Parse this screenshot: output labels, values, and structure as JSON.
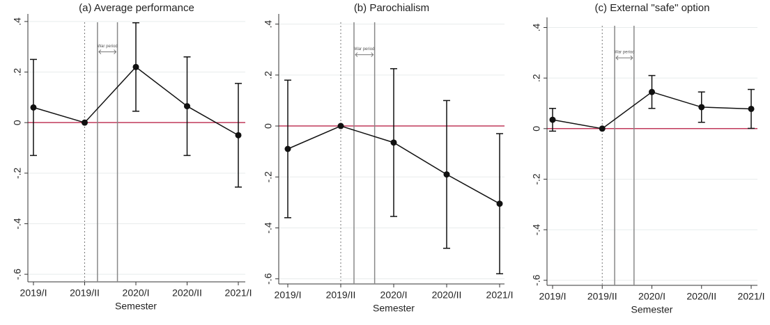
{
  "chart_data": [
    {
      "type": "line",
      "title": "(a) Average performance",
      "x_label": "Semester",
      "annotation": "War period",
      "categories": [
        "2019/I",
        "2019/II",
        "2020/I",
        "2020/II",
        "2021/I"
      ],
      "values": [
        0.06,
        0,
        0.22,
        0.065,
        -0.05
      ],
      "errors": [
        0.19,
        null,
        0.175,
        0.195,
        0.205
      ],
      "color": "#111111",
      "ref_color": "#c0395a",
      "ylim": [
        -0.63,
        0.43
      ],
      "yticks": [
        {
          "value": -0.6,
          "label": "-.6"
        },
        {
          "value": -0.4,
          "label": "-.4"
        },
        {
          "value": -0.2,
          "label": "-.2"
        },
        0,
        {
          "value": 0.2,
          "label": ".2"
        },
        {
          "value": 0.4,
          "label": ".4"
        }
      ],
      "grid": true
    },
    {
      "type": "line",
      "title": "(b) Parochialism",
      "x_label": "Semester",
      "annotation": "War period",
      "categories": [
        "2019/I",
        "2019/II",
        "2020/I",
        "2020/II",
        "2021/I"
      ],
      "values": [
        -0.09,
        0,
        -0.065,
        -0.19,
        -0.305
      ],
      "errors": [
        0.27,
        null,
        0.29,
        0.29,
        0.275
      ],
      "color": "#111111",
      "ref_color": "#c0395a",
      "ylim": [
        -0.62,
        0.44
      ],
      "yticks": [
        {
          "value": -0.6,
          "label": "-.6"
        },
        {
          "value": -0.4,
          "label": "-.4"
        },
        {
          "value": -0.2,
          "label": "-.2"
        },
        0,
        {
          "value": 0.2,
          "label": ".2"
        },
        {
          "value": 0.4,
          "label": ".4"
        }
      ],
      "grid": true
    },
    {
      "type": "line",
      "title": "(c) External \"safe\" option",
      "x_label": "Semester",
      "annotation": "War period",
      "categories": [
        "2019/I",
        "2019/II",
        "2020/I",
        "2020/II",
        "2021/I"
      ],
      "values": [
        0.035,
        0,
        0.145,
        0.085,
        0.078
      ],
      "errors": [
        0.045,
        null,
        0.065,
        0.06,
        0.077
      ],
      "color": "#111111",
      "ref_color": "#c0395a",
      "ylim": [
        -0.62,
        0.44
      ],
      "yticks": [
        {
          "value": -0.6,
          "label": "-.6"
        },
        {
          "value": -0.4,
          "label": "-.4"
        },
        {
          "value": -0.2,
          "label": "-.2"
        },
        0,
        {
          "value": 0.2,
          "label": ".2"
        },
        {
          "value": 0.4,
          "label": ".4"
        }
      ],
      "grid": true
    }
  ]
}
